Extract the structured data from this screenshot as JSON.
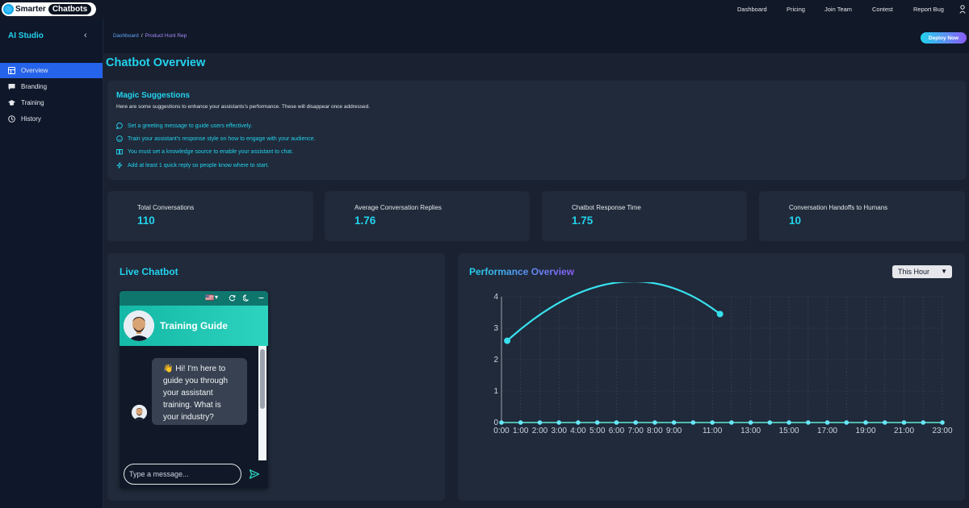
{
  "brand": {
    "part1": "Smarter",
    "part2": "Chatbots"
  },
  "nav": [
    "Dashboard",
    "Pricing",
    "Join Team",
    "Contest",
    "Report Bug"
  ],
  "sidebar": {
    "title": "AI Studio",
    "items": [
      {
        "label": "Overview",
        "icon": "grid-icon",
        "active": true
      },
      {
        "label": "Branding",
        "icon": "chat-icon",
        "active": false
      },
      {
        "label": "Training",
        "icon": "graduation-cap-icon",
        "active": false
      },
      {
        "label": "History",
        "icon": "clock-icon",
        "active": false
      }
    ]
  },
  "breadcrumb": {
    "root": "Dashboard",
    "separator": "/",
    "current": "Product Hunt Rep"
  },
  "deploy_label": "Deploy Now",
  "page_title": "Chatbot Overview",
  "suggestions": {
    "title": "Magic Suggestions",
    "subtitle": "Here are some suggestions to enhance your assistants's performance. These will disappear once addressed.",
    "items": [
      {
        "text": "Set a greeting message to guide users effectively.",
        "icon": "speech-bubble-icon"
      },
      {
        "text": "Train your assistant's response style on how to engage with your audience.",
        "icon": "smiley-icon"
      },
      {
        "text": "You must set a knowledge source to enable your assistant to chat.",
        "icon": "book-icon"
      },
      {
        "text": "Add at least 1 quick reply so people know where to start.",
        "icon": "lightning-icon"
      }
    ]
  },
  "stats": [
    {
      "label": "Total Conversations",
      "value": "110"
    },
    {
      "label": "Average Conversation Replies",
      "value": "1.76"
    },
    {
      "label": "Chatbot Response Time",
      "value": "1.75"
    },
    {
      "label": "Conversation Handoffs to Humans",
      "value": "10"
    }
  ],
  "live_chatbot": {
    "title": "Live Chatbot",
    "bot_name": "Training Guide",
    "message_lines": [
      "👋 Hi! I'm here to",
      "guide you through",
      "your assistant",
      "training. What is",
      "your industry?"
    ],
    "input_placeholder": "Type a message..."
  },
  "performance": {
    "title": "Performance Overview",
    "range": "This Hour"
  },
  "colors": {
    "accent": "#22d3ee",
    "active": "#2563eb",
    "card": "#202a3a",
    "background": "#111827"
  },
  "chart_data": {
    "type": "line",
    "title": "Performance Overview",
    "xlabel": "",
    "ylabel": "",
    "x_tick_labels": [
      "0:00",
      "1:00",
      "2:00",
      "3:00",
      "4:00",
      "5:00",
      "6:00",
      "7:00",
      "8:00",
      "9:00",
      "11:00",
      "13:00",
      "15:00",
      "17:00",
      "19:00",
      "21:00",
      "23:00"
    ],
    "ylim": [
      0,
      4
    ],
    "y_ticks": [
      0,
      1,
      2,
      3,
      4
    ],
    "grid": true,
    "series": [
      {
        "values": [
          {
            "x": 0,
            "y": 0
          },
          {
            "x": 1,
            "y": 0
          },
          {
            "x": 2,
            "y": 0
          },
          {
            "x": 3,
            "y": 0
          },
          {
            "x": 4,
            "y": 0
          },
          {
            "x": 5,
            "y": 0
          },
          {
            "x": 6,
            "y": 0
          },
          {
            "x": 7,
            "y": 0
          },
          {
            "x": 8,
            "y": 0
          },
          {
            "x": 9,
            "y": 0
          },
          {
            "x": 10,
            "y": 0
          },
          {
            "x": 11,
            "y": 0
          },
          {
            "x": 12,
            "y": 0
          },
          {
            "x": 13,
            "y": 0
          },
          {
            "x": 14,
            "y": 0
          },
          {
            "x": 15,
            "y": 0
          },
          {
            "x": 16,
            "y": 0
          },
          {
            "x": 17,
            "y": 0
          },
          {
            "x": 18,
            "y": 0
          },
          {
            "x": 19,
            "y": 0
          },
          {
            "x": 20,
            "y": 0
          },
          {
            "x": 21,
            "y": 0
          },
          {
            "x": 22,
            "y": 0
          },
          {
            "x": 23,
            "y": 0
          }
        ]
      },
      {
        "values": [
          {
            "x": 0.3,
            "y": 2.6
          },
          {
            "x": 11.4,
            "y": 3.45
          }
        ]
      }
    ]
  }
}
